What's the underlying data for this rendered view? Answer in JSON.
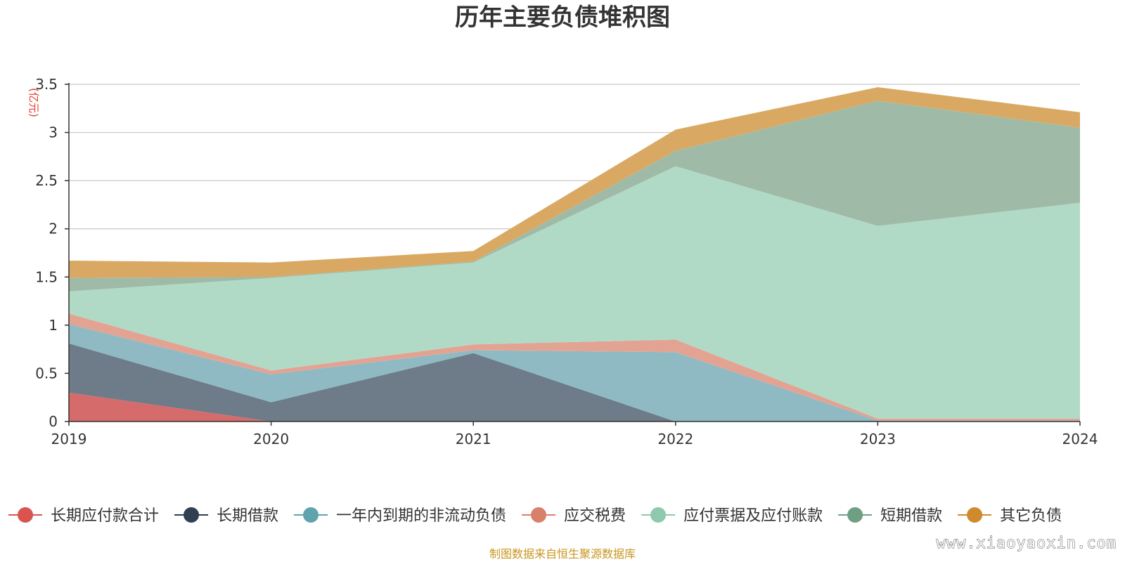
{
  "chart_data": {
    "type": "area",
    "stacked": true,
    "title": "历年主要负债堆积图",
    "unit_label": "(亿元)",
    "x": [
      "2019",
      "2020",
      "2021",
      "2022",
      "2023",
      "2024"
    ],
    "ylim": [
      0,
      3.5
    ],
    "yticks": [
      "0",
      "0.5",
      "1",
      "1.5",
      "2",
      "2.5",
      "3",
      "3.5"
    ],
    "grid": true,
    "legend_position": "bottom",
    "series": [
      {
        "name": "长期应付款合计",
        "color": "#d9534f",
        "fill": "#d56b6b",
        "values": [
          0.3,
          0.0,
          0.0,
          0.0,
          0.0,
          0.0
        ]
      },
      {
        "name": "长期借款",
        "color": "#2e4052",
        "fill": "#6e7b88",
        "values": [
          0.51,
          0.2,
          0.71,
          0.0,
          0.0,
          0.0
        ]
      },
      {
        "name": "一年内到期的非流动负债",
        "color": "#5ea3ad",
        "fill": "#8fbac3",
        "values": [
          0.2,
          0.29,
          0.03,
          0.72,
          0.01,
          0.01
        ]
      },
      {
        "name": "应交税费",
        "color": "#d9806a",
        "fill": "#e3a393",
        "values": [
          0.11,
          0.04,
          0.06,
          0.13,
          0.02,
          0.02
        ]
      },
      {
        "name": "应付票据及应付账款",
        "color": "#8ec9ae",
        "fill": "#b1dac6",
        "values": [
          0.23,
          0.96,
          0.85,
          1.8,
          2.0,
          2.24
        ]
      },
      {
        "name": "短期借款",
        "color": "#6f9f82",
        "fill": "#9fbba7",
        "values": [
          0.14,
          0.01,
          0.01,
          0.16,
          1.3,
          0.78
        ]
      },
      {
        "name": "其它负债",
        "color": "#cf8a2e",
        "fill": "#d9a963",
        "values": [
          0.18,
          0.15,
          0.11,
          0.22,
          0.14,
          0.16
        ]
      }
    ]
  },
  "source": "制图数据来自恒生聚源数据库",
  "watermark": "www.xiaoyaoxin.com"
}
